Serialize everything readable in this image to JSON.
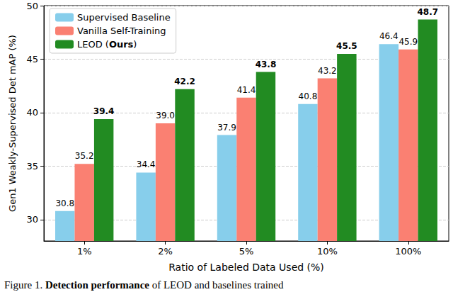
{
  "chart_data": {
    "type": "bar",
    "x_label": "Ratio of Labeled Data Used (%)",
    "y_label": "Gen1 Weakly-Supervised Det mAP (%)",
    "categories": [
      "1%",
      "2%",
      "5%",
      "10%",
      "100%"
    ],
    "series": [
      {
        "name": "Supervised Baseline",
        "color": "#87ceeb",
        "values": [
          30.8,
          34.4,
          37.9,
          40.8,
          46.4
        ]
      },
      {
        "name": "Vanilla Self-Training",
        "color": "#fa8072",
        "values": [
          35.2,
          39.0,
          41.4,
          43.2,
          45.9
        ],
        "value_labels": [
          "35.2",
          "39.0",
          "41.4",
          "43.2",
          "45.9"
        ]
      },
      {
        "name": "LEOD (Ours)",
        "color": "#228b22",
        "values": [
          39.4,
          42.2,
          43.8,
          45.5,
          48.7
        ]
      }
    ],
    "ylim": [
      28,
      50
    ],
    "yticks": [
      30,
      35,
      40,
      45,
      50
    ],
    "grid": true,
    "legend": "upper left",
    "data_labels": true
  },
  "caption": [
    "Figure 1. ",
    "Detection performance",
    " of LEOD and baselines trained"
  ]
}
